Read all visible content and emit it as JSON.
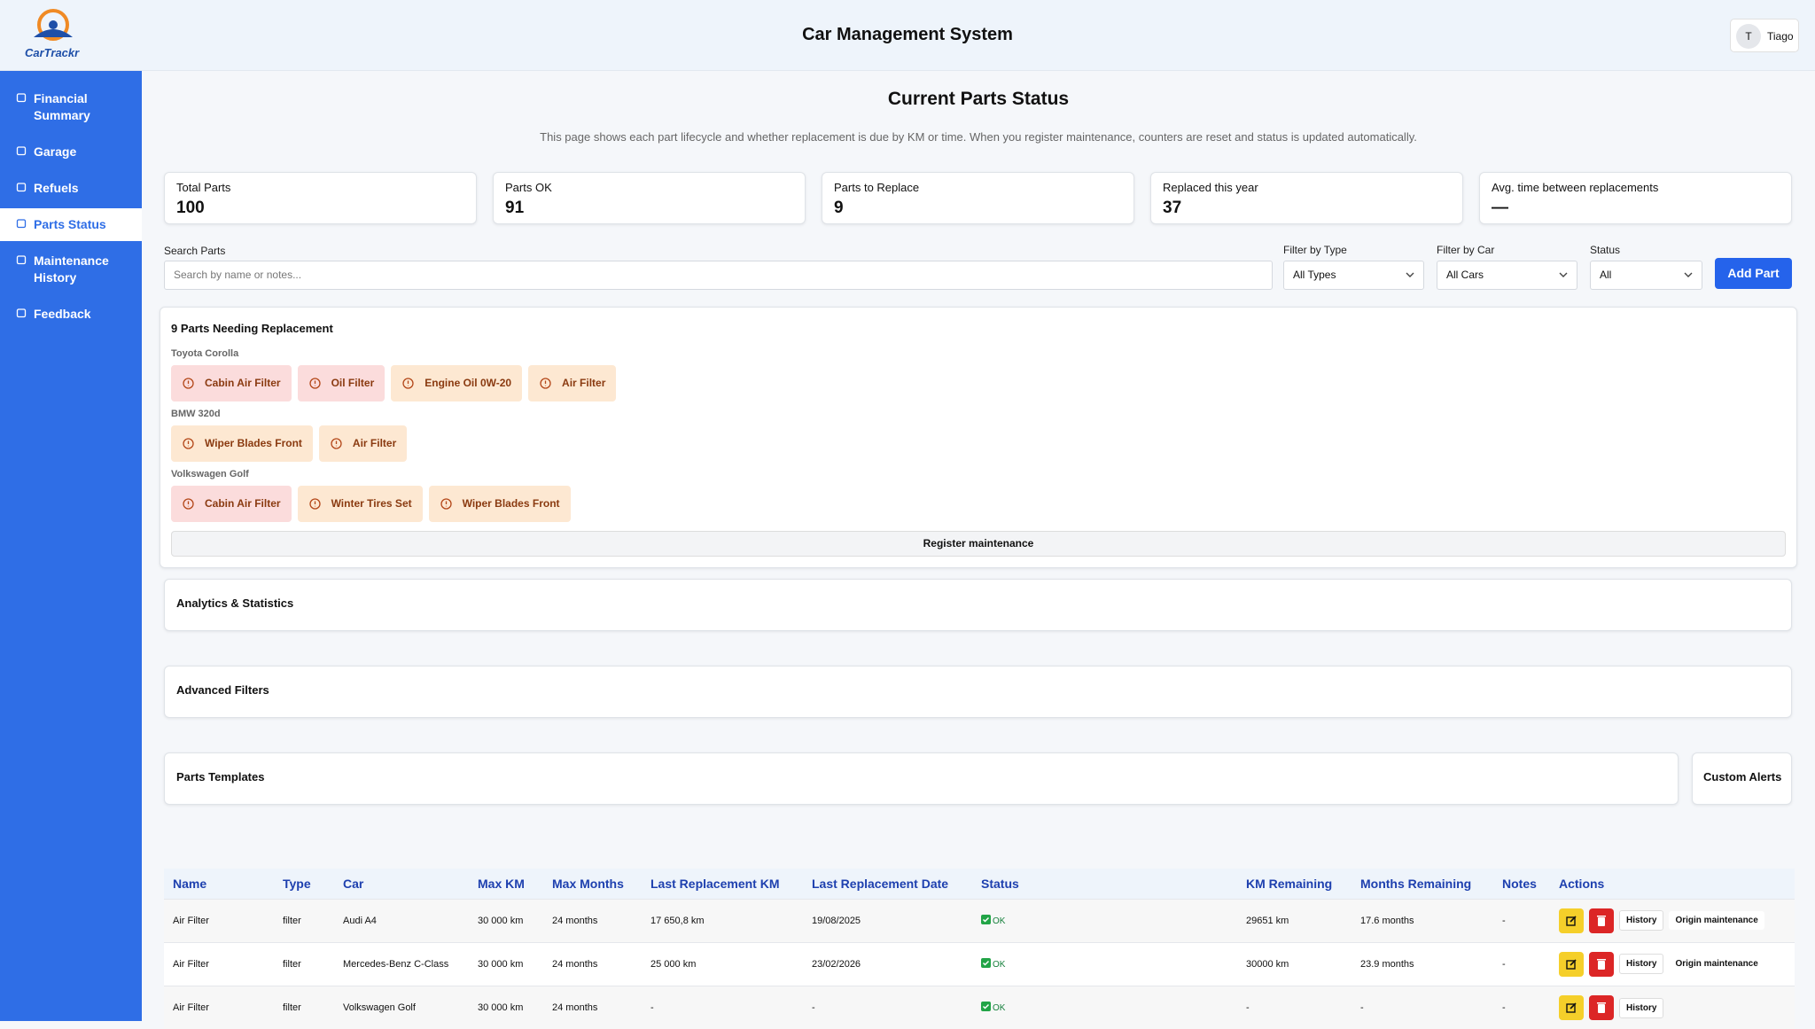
{
  "header": {
    "logo": "CarTrackr",
    "title": "Car Management System",
    "user_initial": "T",
    "user_name": "Tiago"
  },
  "sidebar": {
    "items": [
      "Financial Summary",
      "Garage",
      "Refuels",
      "Parts Status",
      "Maintenance History",
      "Feedback"
    ],
    "active": 3
  },
  "page": {
    "title": "Current Parts Status",
    "description": "This page shows each part lifecycle and whether replacement is due by KM or time. When you register maintenance, counters are reset and status is updated automatically."
  },
  "stats": [
    {
      "label": "Total Parts",
      "value": 100
    },
    {
      "label": "Parts OK",
      "value": 91
    },
    {
      "label": "Parts to Replace",
      "value": 9
    },
    {
      "label": "Replaced this year",
      "value": 37
    },
    {
      "label": "Avg. time between replacements",
      "value": "—"
    }
  ],
  "filters": {
    "search_label": "Search Parts",
    "search_placeholder": "Search by name or notes...",
    "type_label": "Filter by Type",
    "type_value": "All Types",
    "car_label": "Filter by Car",
    "car_value": "All Cars",
    "status_label": "Status",
    "status_value": "All",
    "add_button": "Add Part"
  },
  "replacement": {
    "title": "9 Parts Needing Replacement",
    "groups": [
      {
        "car": "Toyota Corolla",
        "parts": [
          {
            "name": "Cabin Air Filter",
            "color": "#fbdcdc"
          },
          {
            "name": "Oil Filter",
            "color": "#fbdcdc"
          },
          {
            "name": "Engine Oil 0W-20",
            "color": "#fde8d2"
          },
          {
            "name": "Air Filter",
            "color": "#fde8d2"
          }
        ]
      },
      {
        "car": "BMW 320d",
        "parts": [
          {
            "name": "Wiper Blades Front",
            "color": "#fde8d2"
          },
          {
            "name": "Air Filter",
            "color": "#fde8d2"
          }
        ]
      },
      {
        "car": "Volkswagen Golf",
        "parts": [
          {
            "name": "Cabin Air Filter",
            "color": "#fbdcdc"
          },
          {
            "name": "Winter Tires Set",
            "color": "#fde8d2"
          },
          {
            "name": "Wiper Blades Front",
            "color": "#fde8d2"
          }
        ]
      }
    ],
    "button": "Register maintenance"
  },
  "sections": {
    "analytics": "Analytics & Statistics",
    "advanced": "Advanced Filters",
    "templates": "Parts Templates",
    "alerts": "Custom Alerts"
  },
  "table": {
    "headers": [
      "Name",
      "Type",
      "Car",
      "Max KM",
      "Max Months",
      "Last Replacement KM",
      "Last Replacement Date",
      "Status",
      "KM Remaining",
      "Months Remaining",
      "Notes",
      "Actions"
    ],
    "rows": [
      {
        "cells": [
          "Air Filter",
          "filter",
          "Audi A4",
          "30 000 km",
          "24 months",
          "17 650,8 km",
          "19/08/2025",
          "OK",
          "29651 km",
          "17.6 months",
          "-"
        ],
        "actions": [
          "History",
          "Origin maintenance"
        ]
      },
      {
        "cells": [
          "Air Filter",
          "filter",
          "Mercedes-Benz C-Class",
          "30 000 km",
          "24 months",
          "25 000 km",
          "23/02/2026",
          "OK",
          "30000 km",
          "23.9 months",
          "-"
        ],
        "actions": [
          "History",
          "Origin maintenance"
        ]
      },
      {
        "cells": [
          "Air Filter",
          "filter",
          "Volkswagen Golf",
          "30 000 km",
          "24 months",
          "-",
          "-",
          "OK",
          "-",
          "-",
          "-"
        ],
        "actions": [
          "History"
        ]
      }
    ]
  }
}
